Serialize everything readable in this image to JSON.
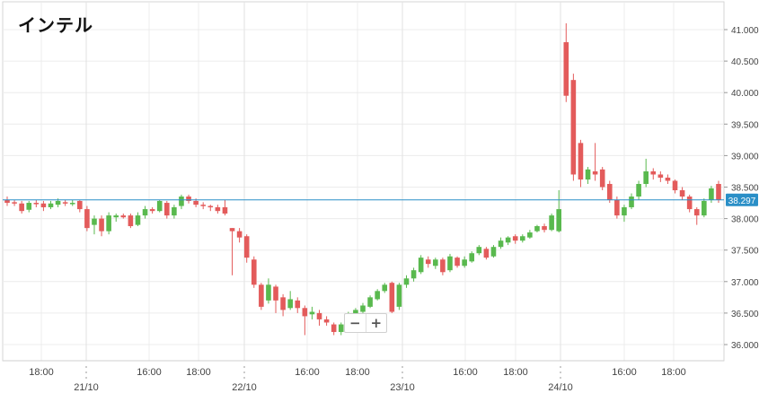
{
  "title": "インテル",
  "zoom": {
    "minus_label": "−",
    "plus_label": "+"
  },
  "colors": {
    "up": "#59b94e",
    "down": "#e35b5b",
    "current": "#2a8fc7",
    "grid": "#ececec",
    "axis_text": "#444444"
  },
  "chart_data": {
    "type": "candlestick",
    "title": "インテル",
    "ylim": [
      35.85,
      41.35
    ],
    "grid": true,
    "current_price": 38.297,
    "current_price_label": "38.297",
    "y_ticks": [
      "36.000",
      "36.500",
      "37.000",
      "37.500",
      "38.000",
      "38.500",
      "39.000",
      "39.500",
      "40.000",
      "40.500",
      "41.000"
    ],
    "time_labels": [
      "18:00",
      "16:00",
      "18:00",
      "16:00",
      "18:00",
      "16:00",
      "18:00",
      "16:00",
      "18:00"
    ],
    "date_labels": [
      "21/10",
      "22/10",
      "23/10",
      "24/10"
    ],
    "candles": [
      [
        38.3,
        38.25,
        38.35,
        38.2
      ],
      [
        38.26,
        38.24,
        38.3,
        38.2
      ],
      [
        38.24,
        38.12,
        38.28,
        38.08
      ],
      [
        38.14,
        38.25,
        38.28,
        38.1
      ],
      [
        38.25,
        38.24,
        38.3,
        38.18
      ],
      [
        38.24,
        38.18,
        38.28,
        38.12
      ],
      [
        38.18,
        38.24,
        38.28,
        38.15
      ],
      [
        38.22,
        38.28,
        38.32,
        38.18
      ],
      [
        38.26,
        38.24,
        38.3,
        38.2
      ],
      [
        38.24,
        38.25,
        38.3,
        38.2
      ],
      [
        38.28,
        38.15,
        38.3,
        38.1
      ],
      [
        38.15,
        37.85,
        38.2,
        37.8
      ],
      [
        37.9,
        38.0,
        38.05,
        37.75
      ],
      [
        38.0,
        37.8,
        38.05,
        37.72
      ],
      [
        37.8,
        38.05,
        38.1,
        37.75
      ],
      [
        38.02,
        38.05,
        38.08,
        37.95
      ],
      [
        38.05,
        38.02,
        38.08,
        38.0
      ],
      [
        38.05,
        37.88,
        38.08,
        37.85
      ],
      [
        37.9,
        38.05,
        38.1,
        37.88
      ],
      [
        38.05,
        38.15,
        38.2,
        38.0
      ],
      [
        38.15,
        38.12,
        38.18,
        38.08
      ],
      [
        38.12,
        38.28,
        38.3,
        38.1
      ],
      [
        38.25,
        38.05,
        38.28,
        38.0
      ],
      [
        38.05,
        38.18,
        38.22,
        38.0
      ],
      [
        38.2,
        38.35,
        38.38,
        38.15
      ],
      [
        38.35,
        38.28,
        38.38,
        38.24
      ],
      [
        38.28,
        38.22,
        38.32,
        38.18
      ],
      [
        38.22,
        38.2,
        38.26,
        38.15
      ],
      [
        38.2,
        38.18,
        38.22,
        38.12
      ],
      [
        38.18,
        38.12,
        38.22,
        38.08
      ],
      [
        38.18,
        38.08,
        38.3,
        38.05
      ],
      [
        37.85,
        37.8,
        37.85,
        37.1
      ],
      [
        37.8,
        37.7,
        37.85,
        37.62
      ],
      [
        37.72,
        37.38,
        37.75,
        37.3
      ],
      [
        37.35,
        36.95,
        37.4,
        36.9
      ],
      [
        36.95,
        36.6,
        36.98,
        36.55
      ],
      [
        36.7,
        36.95,
        37.05,
        36.65
      ],
      [
        36.92,
        36.7,
        36.95,
        36.5
      ],
      [
        36.75,
        36.55,
        36.8,
        36.45
      ],
      [
        36.58,
        36.72,
        36.85,
        36.55
      ],
      [
        36.7,
        36.58,
        36.75,
        36.5
      ],
      [
        36.58,
        36.45,
        36.62,
        36.15
      ],
      [
        36.48,
        36.52,
        36.6,
        36.4
      ],
      [
        36.5,
        36.4,
        36.55,
        36.3
      ],
      [
        36.4,
        36.35,
        36.45,
        36.3
      ],
      [
        36.32,
        36.2,
        36.35,
        36.15
      ],
      [
        36.2,
        36.32,
        36.35,
        36.15
      ],
      [
        36.3,
        36.48,
        36.52,
        36.28
      ],
      [
        36.45,
        36.55,
        36.58,
        36.4
      ],
      [
        36.52,
        36.62,
        36.66,
        36.5
      ],
      [
        36.6,
        36.75,
        36.78,
        36.58
      ],
      [
        36.72,
        36.85,
        36.88,
        36.7
      ],
      [
        36.85,
        36.95,
        36.98,
        36.82
      ],
      [
        36.98,
        36.52,
        37.0,
        36.5
      ],
      [
        36.6,
        36.95,
        36.98,
        36.55
      ],
      [
        36.95,
        37.05,
        37.1,
        36.9
      ],
      [
        37.05,
        37.18,
        37.22,
        37.0
      ],
      [
        37.15,
        37.38,
        37.42,
        37.12
      ],
      [
        37.35,
        37.28,
        37.4,
        37.22
      ],
      [
        37.25,
        37.35,
        37.38,
        37.2
      ],
      [
        37.35,
        37.15,
        37.38,
        37.1
      ],
      [
        37.18,
        37.4,
        37.44,
        37.15
      ],
      [
        37.38,
        37.25,
        37.4,
        37.22
      ],
      [
        37.25,
        37.35,
        37.4,
        37.22
      ],
      [
        37.32,
        37.45,
        37.48,
        37.3
      ],
      [
        37.45,
        37.55,
        37.58,
        37.42
      ],
      [
        37.52,
        37.38,
        37.55,
        37.35
      ],
      [
        37.4,
        37.55,
        37.58,
        37.38
      ],
      [
        37.55,
        37.65,
        37.7,
        37.52
      ],
      [
        37.62,
        37.7,
        37.72,
        37.58
      ],
      [
        37.72,
        37.65,
        37.75,
        37.6
      ],
      [
        37.65,
        37.72,
        37.75,
        37.62
      ],
      [
        37.7,
        37.78,
        37.82,
        37.68
      ],
      [
        37.8,
        37.88,
        37.9,
        37.78
      ],
      [
        37.88,
        37.82,
        37.92,
        37.78
      ],
      [
        37.82,
        38.05,
        38.08,
        37.8
      ],
      [
        37.8,
        38.15,
        38.45,
        37.78
      ],
      [
        40.8,
        39.95,
        41.1,
        39.85
      ],
      [
        40.2,
        38.7,
        40.3,
        38.6
      ],
      [
        39.2,
        38.62,
        39.25,
        38.5
      ],
      [
        38.62,
        38.78,
        38.82,
        38.55
      ],
      [
        38.75,
        38.7,
        39.2,
        38.6
      ],
      [
        38.78,
        38.5,
        38.82,
        38.45
      ],
      [
        38.55,
        38.3,
        38.6,
        38.25
      ],
      [
        38.3,
        38.05,
        38.35,
        38.0
      ],
      [
        38.05,
        38.18,
        38.22,
        37.95
      ],
      [
        38.18,
        38.35,
        38.4,
        38.15
      ],
      [
        38.35,
        38.55,
        38.6,
        38.3
      ],
      [
        38.55,
        38.75,
        38.95,
        38.5
      ],
      [
        38.75,
        38.7,
        38.8,
        38.62
      ],
      [
        38.7,
        38.65,
        38.75,
        38.58
      ],
      [
        38.65,
        38.6,
        38.7,
        38.55
      ],
      [
        38.6,
        38.45,
        38.62,
        38.4
      ],
      [
        38.45,
        38.35,
        38.5,
        38.3
      ],
      [
        38.35,
        38.15,
        38.38,
        38.1
      ],
      [
        38.15,
        38.05,
        38.18,
        37.9
      ],
      [
        38.05,
        38.28,
        38.32,
        38.02
      ],
      [
        38.3,
        38.48,
        38.52,
        38.25
      ],
      [
        38.55,
        38.3,
        38.6,
        38.25
      ]
    ]
  }
}
